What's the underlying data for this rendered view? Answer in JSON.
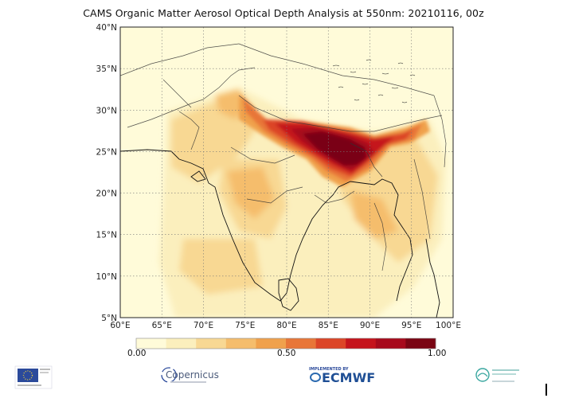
{
  "title": "CAMS Organic Matter Aerosol Optical Depth Analysis at 550nm: 20210116, 00z",
  "map": {
    "lat_range": [
      5,
      40
    ],
    "lon_range": [
      60,
      100
    ],
    "lat_ticks": [
      "5°N",
      "10°N",
      "15°N",
      "20°N",
      "25°N",
      "30°N",
      "35°N",
      "40°N"
    ],
    "lon_ticks": [
      "60°E",
      "65°E",
      "70°E",
      "75°E",
      "80°E",
      "85°E",
      "90°E",
      "95°E",
      "100°E"
    ],
    "background_color": "#fffbd9",
    "grid": "dotted"
  },
  "colorbar": {
    "colors": [
      "#fffbd9",
      "#fbefbd",
      "#f8d893",
      "#f5bd6c",
      "#f0a14c",
      "#e87638",
      "#dc4527",
      "#c5131c",
      "#a70a1c",
      "#7a0513"
    ],
    "labels": [
      "0.00",
      "0.50",
      "1.00"
    ]
  },
  "logos": {
    "eu": "EU-flag-icon",
    "copernicus": "Copernicus",
    "ecmwf_small": "IMPLEMENTED BY",
    "ecmwf": "ECMWF",
    "cams": "CAMS-logo"
  }
}
